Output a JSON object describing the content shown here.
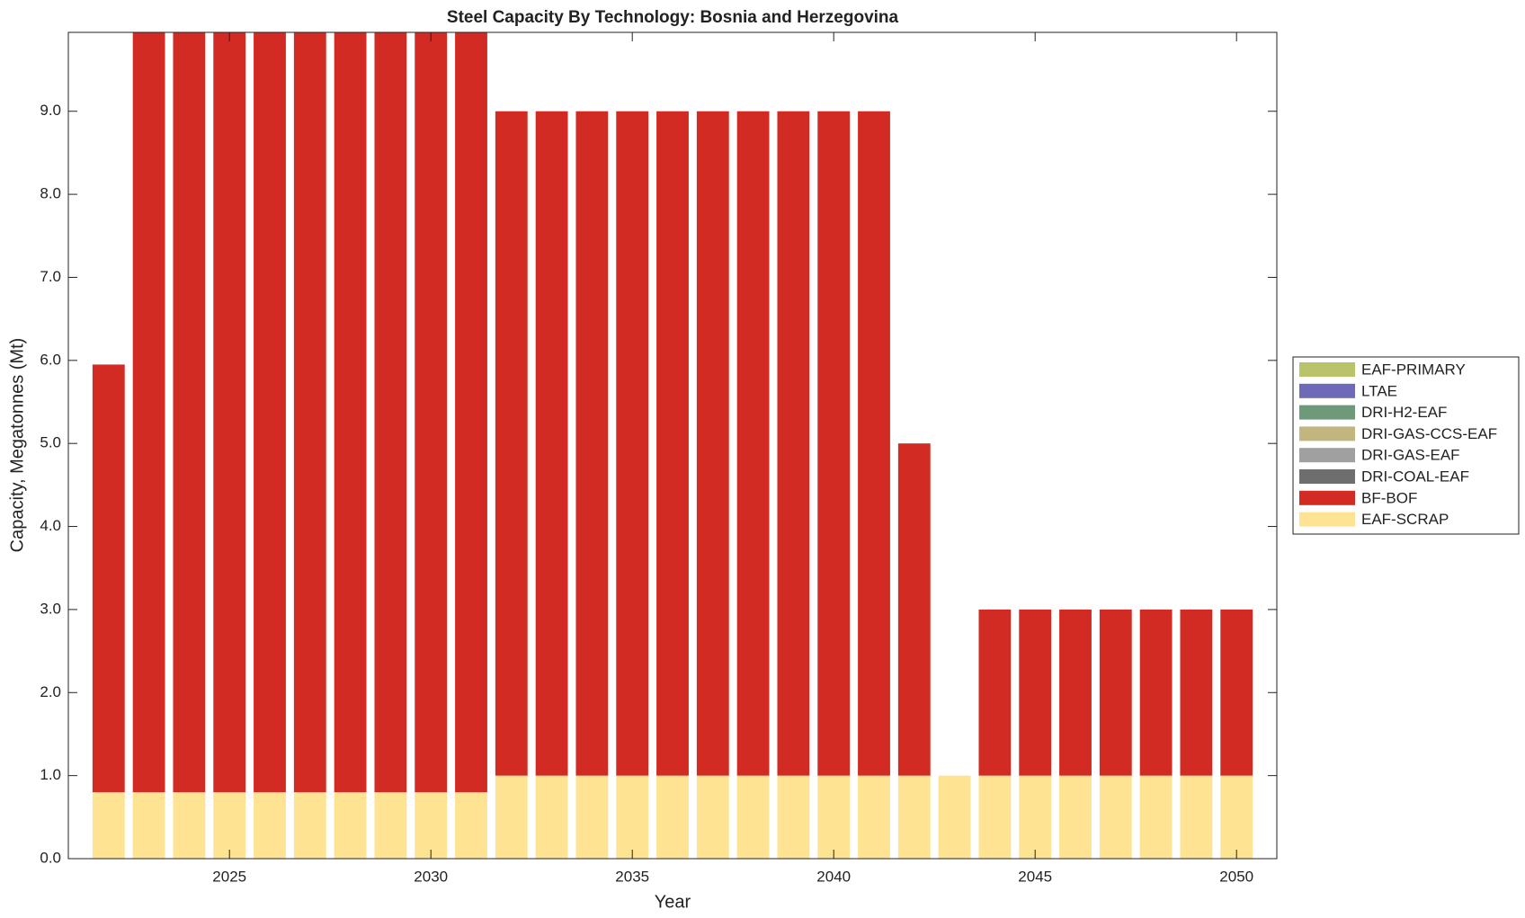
{
  "chart_data": {
    "type": "stacked-bar",
    "title": "Steel Capacity By Technology: Bosnia and Herzegovina",
    "xlabel": "Year",
    "ylabel": "Capacity, Megatonnes (Mt)",
    "x": [
      2022,
      2023,
      2024,
      2025,
      2026,
      2027,
      2028,
      2029,
      2030,
      2031,
      2032,
      2033,
      2034,
      2035,
      2036,
      2037,
      2038,
      2039,
      2040,
      2041,
      2042,
      2043,
      2044,
      2045,
      2046,
      2047,
      2048,
      2049,
      2050
    ],
    "series": [
      {
        "name": "EAF-SCRAP",
        "color": "#fde392",
        "values": [
          0.8,
          0.8,
          0.8,
          0.8,
          0.8,
          0.8,
          0.8,
          0.8,
          0.8,
          0.8,
          1,
          1,
          1,
          1,
          1,
          1,
          1,
          1,
          1,
          1,
          1,
          1,
          1,
          1,
          1,
          1,
          1,
          1,
          1
        ]
      },
      {
        "name": "BF-BOF",
        "color": "#d12b23",
        "values": [
          5.15,
          9.2,
          9.2,
          9.2,
          9.2,
          9.2,
          9.2,
          9.2,
          9.2,
          9.2,
          8,
          8,
          8,
          8,
          8,
          8,
          8,
          8,
          8,
          8,
          4,
          0,
          2,
          2,
          2,
          2,
          2,
          2,
          2
        ]
      },
      {
        "name": "DRI-COAL-EAF",
        "color": "#6e6e6e",
        "values": [
          0,
          0,
          0,
          0,
          0,
          0,
          0,
          0,
          0,
          0,
          0,
          0,
          0,
          0,
          0,
          0,
          0,
          0,
          0,
          0,
          0,
          0,
          0,
          0,
          0,
          0,
          0,
          0,
          0
        ]
      },
      {
        "name": "DRI-GAS-EAF",
        "color": "#a0a0a0",
        "values": [
          0,
          0,
          0,
          0,
          0,
          0,
          0,
          0,
          0,
          0,
          0,
          0,
          0,
          0,
          0,
          0,
          0,
          0,
          0,
          0,
          0,
          0,
          0,
          0,
          0,
          0,
          0,
          0,
          0
        ]
      },
      {
        "name": "DRI-GAS-CCS-EAF",
        "color": "#c2b57e",
        "values": [
          0,
          0,
          0,
          0,
          0,
          0,
          0,
          0,
          0,
          0,
          0,
          0,
          0,
          0,
          0,
          0,
          0,
          0,
          0,
          0,
          0,
          0,
          0,
          0,
          0,
          0,
          0,
          0,
          0
        ]
      },
      {
        "name": "DRI-H2-EAF",
        "color": "#6f9a7a",
        "values": [
          0,
          0,
          0,
          0,
          0,
          0,
          0,
          0,
          0,
          0,
          0,
          0,
          0,
          0,
          0,
          0,
          0,
          0,
          0,
          0,
          0,
          0,
          0,
          0,
          0,
          0,
          0,
          0,
          0
        ]
      },
      {
        "name": "LTAE",
        "color": "#6f6ab8",
        "values": [
          0,
          0,
          0,
          0,
          0,
          0,
          0,
          0,
          0,
          0,
          0,
          0,
          0,
          0,
          0,
          0,
          0,
          0,
          0,
          0,
          0,
          0,
          0,
          0,
          0,
          0,
          0,
          0,
          0
        ]
      },
      {
        "name": "EAF-PRIMARY",
        "color": "#b9c46a",
        "values": [
          0,
          0,
          0,
          0,
          0,
          0,
          0,
          0,
          0,
          0,
          0,
          0,
          0,
          0,
          0,
          0,
          0,
          0,
          0,
          0,
          0,
          0,
          0,
          0,
          0,
          0,
          0,
          0,
          0
        ]
      }
    ],
    "xlim": [
      2021,
      2051
    ],
    "xticks": [
      2025,
      2030,
      2035,
      2040,
      2045,
      2050
    ],
    "ylim": [
      0,
      9.95
    ],
    "yticks": [
      {
        "value": 0,
        "label": "0.0"
      },
      {
        "value": 1,
        "label": "1.0"
      },
      {
        "value": 2,
        "label": "2.0"
      },
      {
        "value": 3,
        "label": "3.0"
      },
      {
        "value": 4,
        "label": "4.0"
      },
      {
        "value": 5,
        "label": "5.0"
      },
      {
        "value": 6,
        "label": "6.0"
      },
      {
        "value": 7,
        "label": "7.0"
      },
      {
        "value": 8,
        "label": "8.0"
      },
      {
        "value": 9,
        "label": "9.0"
      }
    ],
    "legend": "right"
  }
}
